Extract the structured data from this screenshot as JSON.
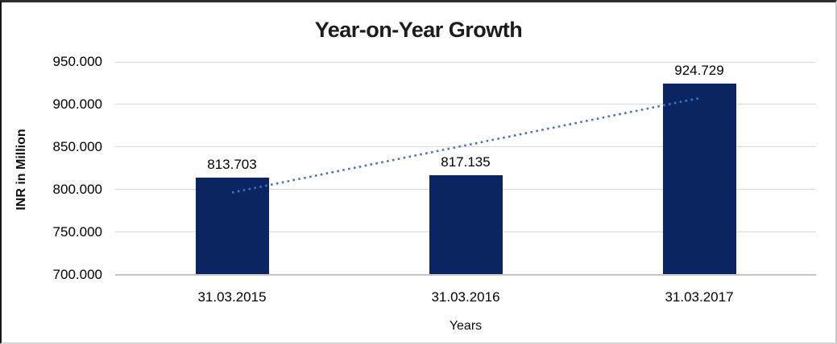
{
  "chart_data": {
    "type": "bar",
    "title": "Year-on-Year Growth",
    "xlabel": "Years",
    "ylabel": "INR in Million",
    "categories": [
      "31.03.2015",
      "31.03.2016",
      "31.03.2017"
    ],
    "values": [
      813.703,
      817.135,
      924.729
    ],
    "value_labels": [
      "813.703",
      "817.135",
      "924.729"
    ],
    "ylim": [
      700,
      950
    ],
    "yticks": [
      {
        "value": 950,
        "label": "950.000"
      },
      {
        "value": 900,
        "label": "900.000"
      },
      {
        "value": 850,
        "label": "850.000"
      },
      {
        "value": 800,
        "label": "800.000"
      },
      {
        "value": 750,
        "label": "750.000"
      },
      {
        "value": 700,
        "label": "700.000"
      }
    ],
    "grid": true,
    "legend": false,
    "bar_color": "#0b2563",
    "trendline": {
      "type": "linear",
      "style": "dotted",
      "color": "#4472C4",
      "start_value": 796.34,
      "end_value": 907.37
    }
  }
}
